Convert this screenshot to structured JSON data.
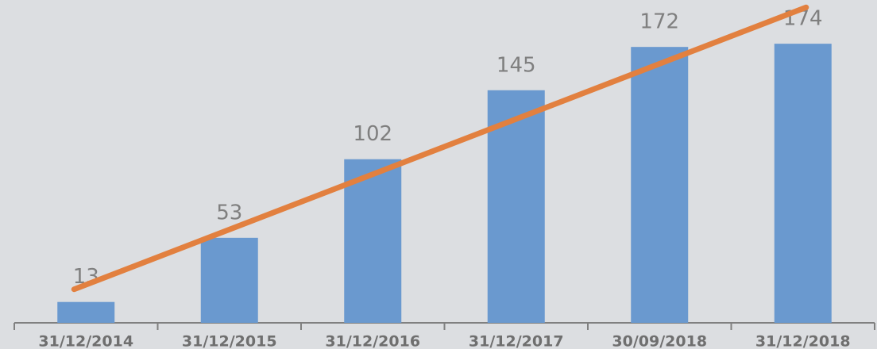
{
  "chart_data": {
    "type": "bar",
    "categories": [
      "31/12/2014",
      "31/12/2015",
      "31/12/2016",
      "31/12/2017",
      "30/09/2018",
      "31/12/2018"
    ],
    "values": [
      13,
      53,
      102,
      145,
      172,
      174
    ],
    "color": "#6a99cf",
    "ylim": [
      0,
      180
    ],
    "trendline": true,
    "trendline_color": "#e2803f"
  }
}
